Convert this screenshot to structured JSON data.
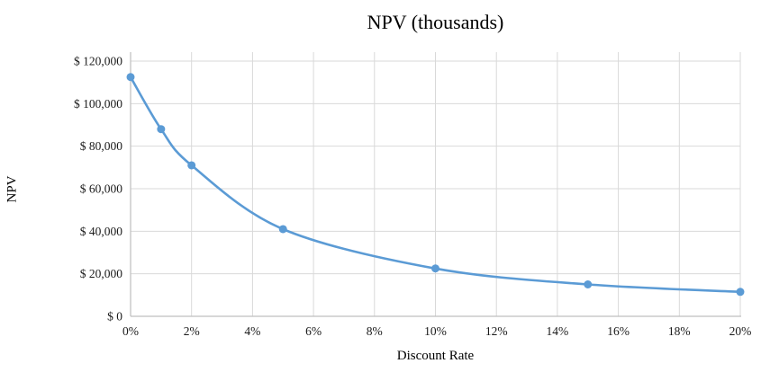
{
  "chart_data": {
    "type": "line",
    "title": "NPV (thousands)",
    "xlabel": "Discount Rate",
    "ylabel": "NPV",
    "x": [
      0,
      0.01,
      0.02,
      0.05,
      0.1,
      0.15,
      0.2
    ],
    "values": [
      112500,
      88000,
      71000,
      41000,
      22500,
      15000,
      11500
    ],
    "x_tick_values": [
      0,
      0.02,
      0.04,
      0.06,
      0.08,
      0.1,
      0.12,
      0.14,
      0.16,
      0.18,
      0.2
    ],
    "x_tick_labels": [
      "0%",
      "2%",
      "4%",
      "6%",
      "8%",
      "10%",
      "12%",
      "14%",
      "16%",
      "18%",
      "20%"
    ],
    "y_tick_values": [
      0,
      20000,
      40000,
      60000,
      80000,
      100000,
      120000
    ],
    "y_tick_labels": [
      "$ 0",
      "$ 20,000",
      "$ 40,000",
      "$ 60,000",
      "$ 80,000",
      "$ 100,000",
      "$ 120,000"
    ],
    "xlim": [
      0,
      0.2
    ],
    "ylim": [
      0,
      120000
    ],
    "grid": true,
    "legend": "none",
    "colors": {
      "line": "#5b9bd5",
      "marker": "#5b9bd5",
      "gridline": "#d9d9d9",
      "axis": "#bfbfbf",
      "text": "#1a1a1a",
      "background": "#ffffff"
    }
  }
}
